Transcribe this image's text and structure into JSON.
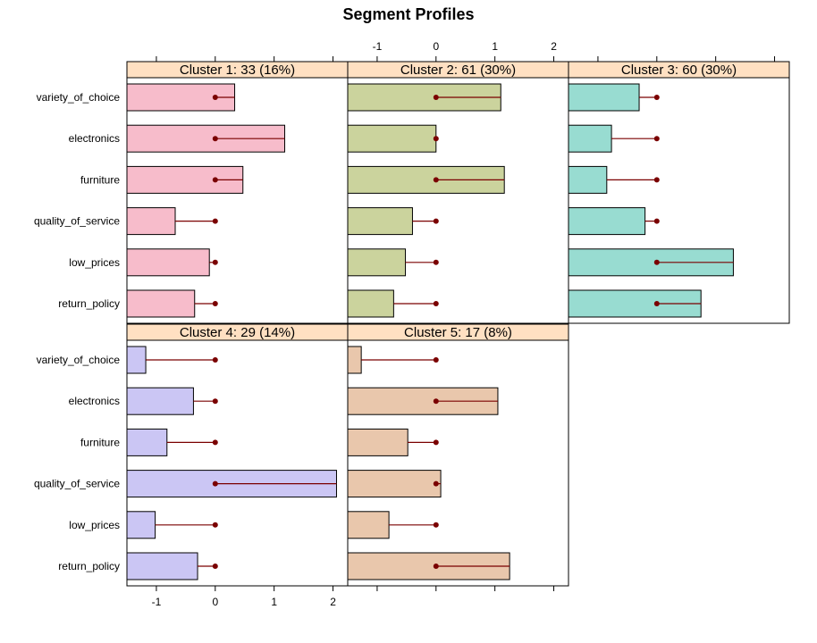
{
  "chart_data": {
    "type": "bar",
    "title": "Segment Profiles",
    "categories": [
      "variety_of_choice",
      "electronics",
      "furniture",
      "quality_of_service",
      "low_prices",
      "return_policy"
    ],
    "xlim": [
      -1.5,
      2.25
    ],
    "ticks": [
      -1,
      0,
      1,
      2
    ],
    "reference_marker_color": "#7a0000",
    "panels": [
      {
        "label": "Cluster 1: 33 (16%)",
        "color": "#f7bccb",
        "values": [
          0.33,
          1.18,
          0.47,
          -0.68,
          -0.1,
          -0.35
        ],
        "reference": [
          0,
          0,
          0,
          0,
          0,
          0
        ]
      },
      {
        "label": "Cluster 2: 61 (30%)",
        "color": "#cbd39d",
        "values": [
          1.1,
          0.0,
          1.16,
          -0.4,
          -0.52,
          -0.72
        ],
        "reference": [
          0,
          0,
          0,
          0,
          0,
          0
        ]
      },
      {
        "label": "Cluster 3: 60 (30%)",
        "color": "#98dcd1",
        "values": [
          -0.3,
          -0.77,
          -0.85,
          -0.2,
          1.3,
          0.75
        ],
        "reference": [
          0,
          0,
          0,
          0,
          0,
          0
        ]
      },
      {
        "label": "Cluster 4: 29 (14%)",
        "color": "#cbc6f4",
        "values": [
          -1.18,
          -0.37,
          -0.82,
          2.06,
          -1.02,
          -0.3
        ],
        "reference": [
          0,
          0,
          0,
          0,
          0,
          0
        ]
      },
      {
        "label": "Cluster 5: 17 (8%)",
        "color": "#e9c7ac",
        "values": [
          -1.27,
          1.05,
          -0.48,
          0.08,
          -0.8,
          1.25
        ],
        "reference": [
          0,
          0,
          0,
          0,
          0,
          0
        ]
      }
    ]
  }
}
